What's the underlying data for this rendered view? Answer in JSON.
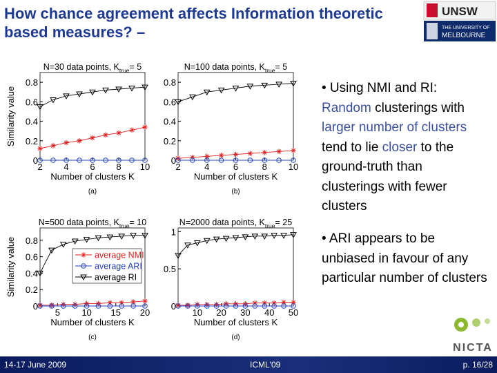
{
  "title": "How chance agreement affects Information theoretic based measures? –",
  "logos": {
    "unsw": "UNSW",
    "melbourne_top": "THE UNIVERSITY OF",
    "melbourne_bottom": "MELBOURNE",
    "nicta": "NICTA"
  },
  "bullets": [
    [
      "• Using NMI and RI: ",
      "Random",
      " clusterings with ",
      "larger number of clusters",
      " tend to lie ",
      "closer",
      " to the ground-truth than clusterings with fewer clusters"
    ],
    [
      "• ARI appears to be unbiased in favour of any particular number of clusters"
    ]
  ],
  "footer": {
    "date": "14-17 June 2009",
    "venue": "ICML'09",
    "page": "p. 16/28"
  },
  "chart_data": [
    {
      "type": "line",
      "title": "N=30 data points, K",
      "title_subscript": "true",
      "title_suffix": "= 5",
      "x_label": "Number of clusters K",
      "y_label": "Similarity value",
      "caption": "(a)",
      "x": [
        2,
        3,
        4,
        5,
        6,
        7,
        8,
        9,
        10
      ],
      "xlim": [
        2,
        10
      ],
      "xticks": [
        2,
        4,
        6,
        8,
        10
      ],
      "ylim": [
        0,
        0.9
      ],
      "yticks": [
        0,
        0.2,
        0.4,
        0.6,
        0.8
      ],
      "series": [
        {
          "color": "#e02020",
          "marker": "star",
          "values": [
            0.12,
            0.15,
            0.18,
            0.2,
            0.23,
            0.26,
            0.28,
            0.31,
            0.34
          ]
        },
        {
          "color": "#2040c0",
          "marker": "circle",
          "values": [
            0,
            0,
            0,
            0,
            0,
            0,
            0,
            0,
            0
          ]
        },
        {
          "color": "#000000",
          "marker": "triangle-down",
          "values": [
            0.55,
            0.62,
            0.66,
            0.68,
            0.7,
            0.72,
            0.73,
            0.74,
            0.75
          ]
        }
      ]
    },
    {
      "type": "line",
      "title": "N=100 data points, K",
      "title_subscript": "true",
      "title_suffix": "= 5",
      "x_label": "Number of clusters K",
      "caption": "(b)",
      "x": [
        2,
        3,
        4,
        5,
        6,
        7,
        8,
        9,
        10
      ],
      "xlim": [
        2,
        10
      ],
      "xticks": [
        2,
        4,
        6,
        8,
        10
      ],
      "ylim": [
        0,
        0.9
      ],
      "yticks": [
        0,
        0.2,
        0.4,
        0.6,
        0.8
      ],
      "series": [
        {
          "color": "#e02020",
          "marker": "star",
          "values": [
            0.02,
            0.03,
            0.04,
            0.05,
            0.06,
            0.07,
            0.08,
            0.09,
            0.1
          ]
        },
        {
          "color": "#2040c0",
          "marker": "circle",
          "values": [
            0,
            0,
            0,
            0,
            0,
            0,
            0,
            0,
            0
          ]
        },
        {
          "color": "#000000",
          "marker": "triangle-down",
          "values": [
            0.6,
            0.65,
            0.7,
            0.72,
            0.74,
            0.76,
            0.77,
            0.78,
            0.79
          ]
        }
      ]
    },
    {
      "type": "line",
      "title": "N=500 data points, K",
      "title_subscript": "true",
      "title_suffix": "= 10",
      "x_label": "Number of clusters K",
      "y_label": "Similarity value",
      "caption": "(c)",
      "x": [
        2,
        4,
        6,
        8,
        10,
        12,
        14,
        16,
        18,
        20
      ],
      "xlim": [
        2,
        20
      ],
      "xticks": [
        5,
        10,
        15,
        20
      ],
      "ylim": [
        0,
        0.95
      ],
      "yticks": [
        0,
        0.2,
        0.4,
        0.6,
        0.8
      ],
      "legend": "right",
      "series": [
        {
          "name": "average NMI",
          "color": "#e02020",
          "marker": "star",
          "values": [
            0.01,
            0.01,
            0.02,
            0.02,
            0.03,
            0.03,
            0.04,
            0.04,
            0.05,
            0.06
          ]
        },
        {
          "name": "average ARI",
          "color": "#2040c0",
          "marker": "circle",
          "values": [
            0,
            0,
            0,
            0,
            0,
            0,
            0,
            0,
            0,
            0
          ]
        },
        {
          "name": "average RI",
          "color": "#000000",
          "marker": "triangle-down",
          "values": [
            0.4,
            0.68,
            0.75,
            0.79,
            0.81,
            0.83,
            0.84,
            0.85,
            0.86,
            0.86
          ]
        }
      ]
    },
    {
      "type": "line",
      "title": "N=2000 data points, K",
      "title_subscript": "true",
      "title_suffix": "= 25",
      "x_label": "Number of clusters K",
      "caption": "(d)",
      "x": [
        2,
        6,
        10,
        14,
        18,
        22,
        26,
        30,
        34,
        38,
        42,
        46,
        50
      ],
      "xlim": [
        2,
        50
      ],
      "xticks": [
        10,
        20,
        30,
        40,
        50
      ],
      "ylim": [
        0,
        1.05
      ],
      "yticks": [
        0,
        0.5,
        1
      ],
      "series": [
        {
          "color": "#e02020",
          "marker": "star",
          "values": [
            0.01,
            0.01,
            0.02,
            0.02,
            0.02,
            0.03,
            0.03,
            0.03,
            0.04,
            0.04,
            0.04,
            0.05,
            0.05
          ]
        },
        {
          "color": "#2040c0",
          "marker": "circle",
          "values": [
            0,
            0,
            0,
            0,
            0,
            0,
            0,
            0,
            0,
            0,
            0,
            0,
            0
          ]
        },
        {
          "color": "#000000",
          "marker": "triangle-down",
          "values": [
            0.68,
            0.82,
            0.85,
            0.88,
            0.9,
            0.91,
            0.92,
            0.93,
            0.94,
            0.94,
            0.95,
            0.95,
            0.96
          ]
        }
      ]
    }
  ]
}
